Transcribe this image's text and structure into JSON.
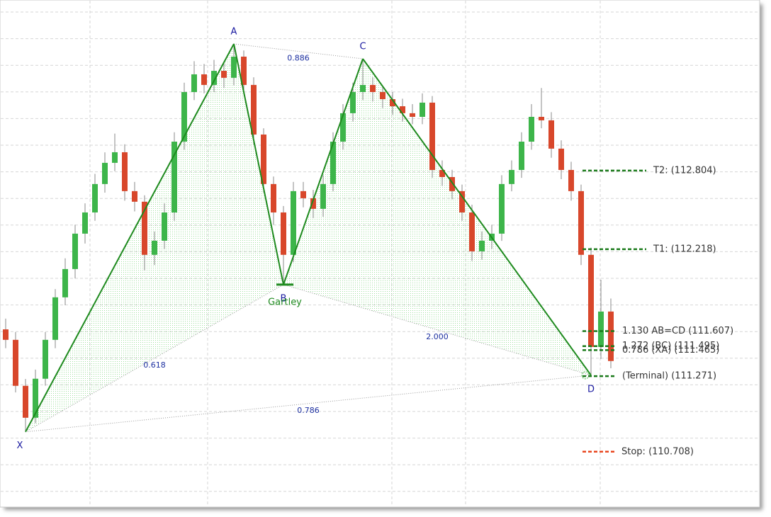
{
  "chart_data": {
    "type": "candlestick",
    "ylim": [
      110.3,
      114.05
    ],
    "grid": true,
    "up_color": "#3db54a",
    "down_color": "#d8472b",
    "open": [
      111.62,
      111.542,
      111.199,
      110.961,
      111.252,
      111.542,
      111.859,
      112.07,
      112.334,
      112.492,
      112.704,
      112.862,
      112.941,
      112.651,
      112.572,
      112.176,
      112.281,
      112.492,
      113.02,
      113.39,
      113.522,
      113.443,
      113.548,
      113.496,
      113.654,
      113.443,
      113.073,
      112.704,
      112.492,
      112.176,
      112.651,
      112.598,
      112.519,
      112.704,
      113.02,
      113.232,
      113.39,
      113.443,
      113.39,
      113.337,
      113.284,
      113.232,
      113.205,
      113.311,
      112.809,
      112.756,
      112.651,
      112.492,
      112.202,
      112.281,
      112.334,
      112.704,
      112.809,
      113.02,
      113.205,
      113.179,
      112.968,
      112.809,
      112.651,
      112.176,
      111.489,
      111.753
    ],
    "high": [
      111.7,
      111.6,
      111.25,
      111.32,
      111.6,
      111.92,
      112.15,
      112.4,
      112.56,
      112.78,
      112.94,
      113.08,
      113.0,
      112.72,
      112.62,
      112.35,
      112.56,
      113.09,
      113.46,
      113.62,
      113.6,
      113.63,
      113.61,
      113.749,
      113.7,
      113.5,
      113.12,
      112.76,
      112.54,
      112.72,
      112.72,
      112.66,
      112.77,
      113.09,
      113.3,
      113.46,
      113.638,
      113.5,
      113.43,
      113.39,
      113.34,
      113.3,
      113.38,
      113.36,
      112.88,
      112.81,
      112.7,
      112.55,
      112.35,
      112.4,
      112.77,
      112.88,
      113.09,
      113.3,
      113.42,
      113.24,
      113.03,
      112.87,
      112.7,
      112.23,
      111.99,
      111.85
    ],
    "low": [
      111.48,
      111.15,
      110.856,
      110.92,
      111.2,
      111.48,
      111.8,
      112.0,
      112.26,
      112.43,
      112.64,
      112.8,
      112.58,
      112.5,
      112.06,
      112.1,
      112.22,
      112.43,
      112.96,
      113.33,
      113.38,
      113.39,
      113.42,
      113.44,
      113.38,
      113.0,
      112.64,
      112.4,
      111.954,
      112.12,
      112.53,
      112.45,
      112.46,
      112.65,
      112.96,
      113.17,
      113.33,
      113.32,
      113.27,
      113.22,
      113.17,
      113.15,
      113.15,
      112.75,
      112.69,
      112.59,
      112.43,
      112.13,
      112.14,
      112.22,
      112.28,
      112.65,
      112.75,
      112.96,
      113.12,
      112.9,
      112.74,
      112.58,
      112.1,
      111.278,
      111.4,
      111.33
    ],
    "close": [
      111.542,
      111.199,
      110.961,
      111.252,
      111.542,
      111.859,
      112.07,
      112.334,
      112.492,
      112.704,
      112.862,
      112.941,
      112.651,
      112.572,
      112.176,
      112.281,
      112.492,
      113.02,
      113.39,
      113.522,
      113.443,
      113.548,
      113.496,
      113.654,
      113.443,
      113.073,
      112.704,
      112.492,
      112.176,
      112.651,
      112.598,
      112.519,
      112.704,
      113.02,
      113.232,
      113.39,
      113.443,
      113.39,
      113.337,
      113.284,
      113.232,
      113.205,
      113.311,
      112.809,
      112.756,
      112.651,
      112.492,
      112.202,
      112.281,
      112.334,
      112.704,
      112.809,
      113.02,
      113.205,
      113.179,
      112.968,
      112.809,
      112.651,
      112.176,
      111.489,
      111.753,
      111.384
    ],
    "pattern": {
      "name": "Gartley",
      "color": "#1e8a1e",
      "points": [
        {
          "label": "X",
          "index": 2,
          "price": 110.856
        },
        {
          "label": "A",
          "index": 23,
          "price": 113.749
        },
        {
          "label": "B",
          "index": 28,
          "price": 111.954
        },
        {
          "label": "C",
          "index": 36,
          "price": 113.638
        },
        {
          "label": "D",
          "index": 59,
          "price": 111.278
        }
      ],
      "ratios": [
        {
          "label": "0.886",
          "between": [
            1,
            3
          ]
        },
        {
          "label": "0.618",
          "between": [
            0,
            2
          ]
        },
        {
          "label": "2.000",
          "between": [
            2,
            4
          ]
        },
        {
          "label": "0.786",
          "between": [
            0,
            4
          ]
        }
      ]
    },
    "targets": [
      {
        "label": "T2: (112.804)",
        "value": 112.804
      },
      {
        "label": "T1: (112.218)",
        "value": 112.218
      }
    ],
    "pattern_levels": [
      {
        "label": "1.130 AB=CD (111.607)",
        "value": 111.607
      },
      {
        "label": "1.272 (BC) (111.495)",
        "value": 111.495
      },
      {
        "label": "0.786 (XA) (111.465)",
        "value": 111.465
      },
      {
        "label": "(Terminal) (111.271)",
        "value": 111.271
      }
    ],
    "level_color": "#1a7a1a",
    "stop": {
      "label": "Stop: (110.708)",
      "value": 110.708,
      "color": "#e8451e"
    }
  }
}
